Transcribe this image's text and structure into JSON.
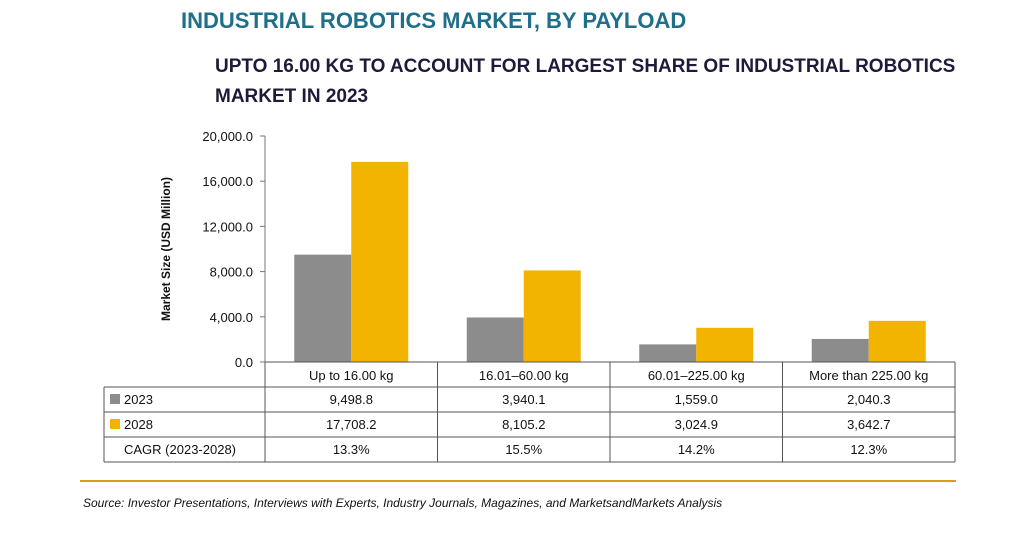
{
  "title": "INDUSTRIAL ROBOTICS MARKET, BY PAYLOAD",
  "subtitle": "UPTO 16.00 KG TO ACCOUNT FOR LARGEST SHARE OF INDUSTRIAL ROBOTICS MARKET IN 2023",
  "source": "Source: Investor Presentations, Interviews with Experts, Industry Journals, Magazines, and MarketsandMarkets Analysis",
  "colors": {
    "series_2023": "#8c8c8c",
    "series_2028": "#f2b400",
    "accent": "#d4a017",
    "title": "#1f6f8b"
  },
  "chart_data": {
    "type": "bar",
    "ylabel": "Market Size (USD Million)",
    "xlabel": "",
    "ylim": [
      0,
      20000
    ],
    "yticks": [
      "0.0",
      "4,000.0",
      "8,000.0",
      "12,000.0",
      "16,000.0",
      "20,000.0"
    ],
    "ytick_values": [
      0,
      4000,
      8000,
      12000,
      16000,
      20000
    ],
    "categories": [
      "Up to 16.00 kg",
      "16.01–60.00 kg",
      "60.01–225.00 kg",
      "More than 225.00 kg"
    ],
    "series": [
      {
        "name": "2023",
        "values": [
          9498.8,
          3940.1,
          1559.0,
          2040.3
        ],
        "labels": [
          "9,498.8",
          "3,940.1",
          "1,559.0",
          "2,040.3"
        ]
      },
      {
        "name": "2028",
        "values": [
          17708.2,
          8105.2,
          3024.9,
          3642.7
        ],
        "labels": [
          "17,708.2",
          "8,105.2",
          "3,024.9",
          "3,642.7"
        ]
      }
    ],
    "cagr": {
      "label": "CAGR (2023-2028)",
      "values": [
        "13.3%",
        "15.5%",
        "14.2%",
        "12.3%"
      ]
    },
    "grid": false,
    "legend": "table-left"
  }
}
